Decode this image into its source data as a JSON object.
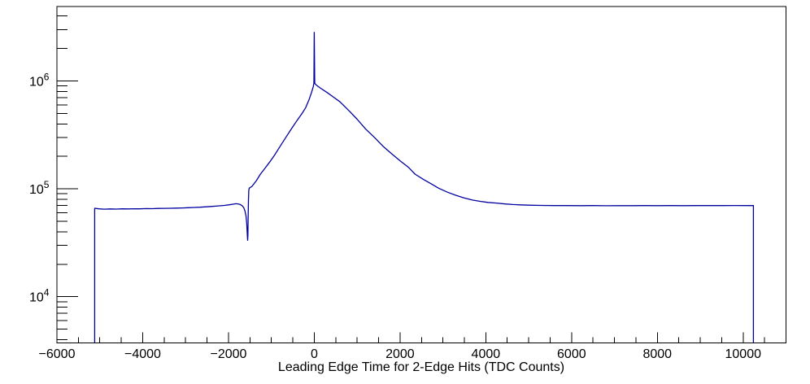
{
  "window": {
    "background": "#ffffff"
  },
  "chart_data": {
    "type": "line",
    "title": "",
    "xlabel": "Leading Edge Time for 2-Edge Hits (TDC Counts)",
    "ylabel": "",
    "grid": false,
    "legend": false,
    "x_axis": {
      "scale": "linear",
      "min": -6000,
      "max": 11000,
      "minor_step": 500,
      "major_ticks": [
        -6000,
        -4000,
        -2000,
        0,
        2000,
        4000,
        6000,
        8000,
        10000
      ],
      "tick_labels": [
        "−6000",
        "−4000",
        "−2000",
        "0",
        "2000",
        "4000",
        "6000",
        "8000",
        "10000"
      ]
    },
    "y_axis": {
      "scale": "log",
      "min": 3730,
      "max": 4900000,
      "major_ticks": [
        10000,
        100000,
        1000000
      ],
      "tick_labels": [
        {
          "base": "10",
          "exp": "4",
          "value": 10000
        },
        {
          "base": "10",
          "exp": "5",
          "value": 100000
        },
        {
          "base": "10",
          "exp": "6",
          "value": 1000000
        }
      ]
    },
    "colors": {
      "line": "#0000a0",
      "axis": "#000000",
      "text": "#000000",
      "background": "#ffffff"
    },
    "series": [
      {
        "name": "leading_edge_time_2edge_hits",
        "points": [
          [
            -5120,
            3730
          ],
          [
            -5120,
            66000
          ],
          [
            -5020,
            65200
          ],
          [
            -4900,
            64800
          ],
          [
            -4760,
            65100
          ],
          [
            -4620,
            64900
          ],
          [
            -4480,
            65200
          ],
          [
            -4340,
            65100
          ],
          [
            -4200,
            65400
          ],
          [
            -4060,
            65300
          ],
          [
            -3920,
            65600
          ],
          [
            -3780,
            65500
          ],
          [
            -3640,
            65800
          ],
          [
            -3500,
            65900
          ],
          [
            -3360,
            66100
          ],
          [
            -3220,
            66300
          ],
          [
            -3080,
            66500
          ],
          [
            -2940,
            66800
          ],
          [
            -2800,
            67200
          ],
          [
            -2660,
            67600
          ],
          [
            -2520,
            68100
          ],
          [
            -2380,
            68700
          ],
          [
            -2240,
            69400
          ],
          [
            -2100,
            70200
          ],
          [
            -1980,
            71200
          ],
          [
            -1880,
            72200
          ],
          [
            -1830,
            72800
          ],
          [
            -1780,
            72600
          ],
          [
            -1730,
            71700
          ],
          [
            -1685,
            70000
          ],
          [
            -1645,
            67000
          ],
          [
            -1615,
            62500
          ],
          [
            -1592,
            56000
          ],
          [
            -1575,
            47500
          ],
          [
            -1562,
            39000
          ],
          [
            -1553,
            33300
          ],
          [
            -1547,
            36500
          ],
          [
            -1541,
            52000
          ],
          [
            -1534,
            78000
          ],
          [
            -1527,
            96000
          ],
          [
            -1518,
            101500
          ],
          [
            -1450,
            105500
          ],
          [
            -1350,
            119000
          ],
          [
            -1260,
            136000
          ],
          [
            -1150,
            155000
          ],
          [
            -1040,
            177000
          ],
          [
            -920,
            207000
          ],
          [
            -790,
            250000
          ],
          [
            -660,
            301000
          ],
          [
            -540,
            356000
          ],
          [
            -410,
            426000
          ],
          [
            -280,
            503000
          ],
          [
            -200,
            566000
          ],
          [
            -120,
            675000
          ],
          [
            -60,
            788000
          ],
          [
            -25,
            880000
          ],
          [
            -8,
            955000
          ],
          [
            0,
            2820000
          ],
          [
            12,
            952000
          ],
          [
            50,
            916000
          ],
          [
            150,
            855000
          ],
          [
            300,
            782000
          ],
          [
            450,
            708000
          ],
          [
            600,
            640000
          ],
          [
            830,
            520000
          ],
          [
            1000,
            442000
          ],
          [
            1200,
            358000
          ],
          [
            1400,
            301000
          ],
          [
            1600,
            249000
          ],
          [
            1800,
            212000
          ],
          [
            2000,
            182000
          ],
          [
            2200,
            158000
          ],
          [
            2350,
            137000
          ],
          [
            2550,
            122000
          ],
          [
            2730,
            111000
          ],
          [
            2900,
            101500
          ],
          [
            3110,
            93000
          ],
          [
            3300,
            87200
          ],
          [
            3490,
            82300
          ],
          [
            3700,
            78600
          ],
          [
            3870,
            76600
          ],
          [
            4050,
            74900
          ],
          [
            4250,
            73800
          ],
          [
            4450,
            72400
          ],
          [
            4630,
            71600
          ],
          [
            4800,
            71000
          ],
          [
            5000,
            70600
          ],
          [
            5300,
            70200
          ],
          [
            5600,
            70000
          ],
          [
            5900,
            69900
          ],
          [
            6200,
            69800
          ],
          [
            6500,
            69900
          ],
          [
            6800,
            69700
          ],
          [
            7100,
            69800
          ],
          [
            7400,
            69800
          ],
          [
            7700,
            69900
          ],
          [
            8000,
            69800
          ],
          [
            8300,
            69900
          ],
          [
            8600,
            69800
          ],
          [
            8900,
            70000
          ],
          [
            9200,
            69900
          ],
          [
            9500,
            70000
          ],
          [
            9800,
            70100
          ],
          [
            10050,
            70000
          ],
          [
            10240,
            70100
          ],
          [
            10240,
            3730
          ]
        ]
      }
    ]
  }
}
